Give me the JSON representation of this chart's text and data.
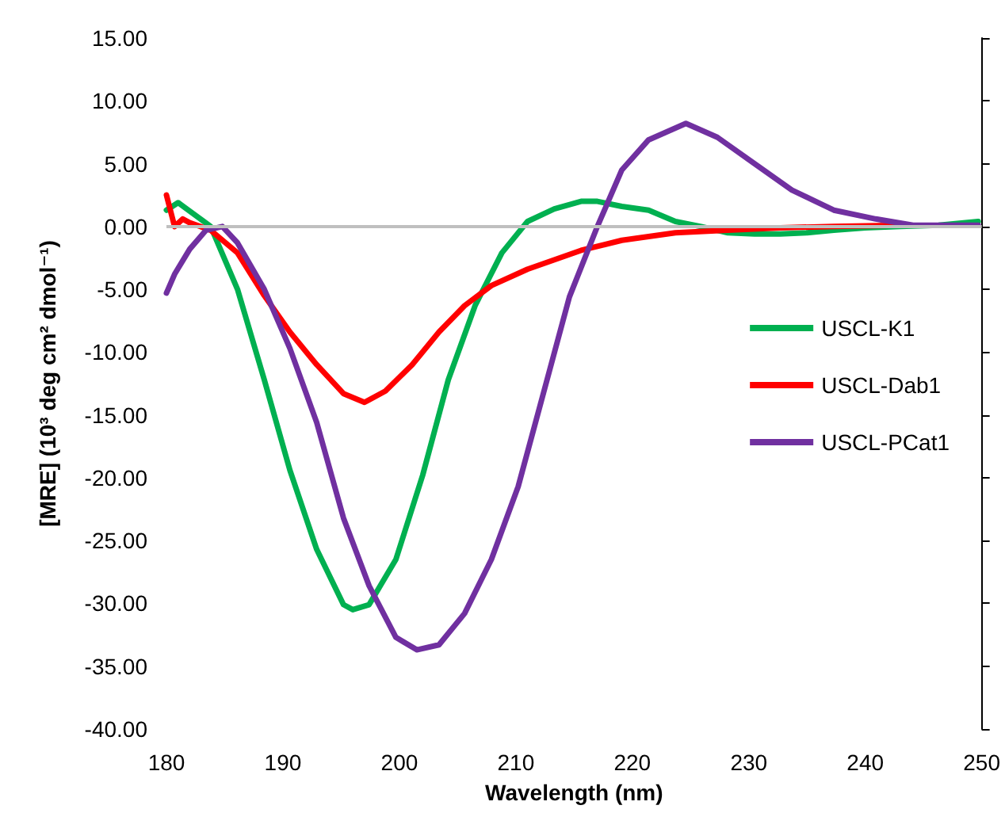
{
  "chart_data": {
    "type": "line",
    "xlabel": "Wavelength (nm)",
    "ylabel": "[MRE] (10³ deg cm² dmol⁻¹)",
    "xlim": [
      180,
      250
    ],
    "xticks": [
      180,
      190,
      200,
      210,
      220,
      230,
      240,
      250
    ],
    "ylim": [
      -40,
      15
    ],
    "yticks": [
      {
        "value": -40,
        "label": "-40.00"
      },
      {
        "value": -35,
        "label": "-35.00"
      },
      {
        "value": -30,
        "label": "-30.00"
      },
      {
        "value": -25,
        "label": "-25.00"
      },
      {
        "value": -20,
        "label": "-20.00"
      },
      {
        "value": -15,
        "label": "-15.00"
      },
      {
        "value": -10,
        "label": "-10.00"
      },
      {
        "value": -5,
        "label": "-5.00"
      },
      {
        "value": 0,
        "label": "0.00"
      },
      {
        "value": 5,
        "label": "5.00"
      },
      {
        "value": 10,
        "label": "10.00"
      },
      {
        "value": 15,
        "label": "15.00"
      }
    ],
    "grid": false,
    "legend": "right",
    "marker": "none",
    "line_style": "solid",
    "ref_lines": [
      {
        "axis": "y",
        "value": 0,
        "color": "#bfbfbf"
      }
    ],
    "series": [
      {
        "name": "USCL-K1",
        "color": "#00b050",
        "x": [
          180,
          181,
          183.8,
          186.1,
          188.4,
          190.6,
          192.9,
          195.2,
          196,
          197.4,
          199.7,
          202,
          204.2,
          206.5,
          208.8,
          211,
          213.3,
          215.6,
          217,
          219.1,
          221.4,
          223.7,
          225.9,
          228.2,
          230.5,
          232.7,
          235,
          237.3,
          240,
          243,
          246.3,
          249.7
        ],
        "values": [
          1.3,
          1.9,
          0,
          -5,
          -12.2,
          -19.4,
          -25.7,
          -30.1,
          -30.5,
          -30.1,
          -26.5,
          -19.8,
          -12.2,
          -6.3,
          -2.1,
          0.4,
          1.4,
          2,
          2,
          1.6,
          1.3,
          0.4,
          0,
          -0.5,
          -0.6,
          -0.6,
          -0.5,
          -0.3,
          -0.1,
          0,
          0.1,
          0.4
        ]
      },
      {
        "name": "USCL-Dab1",
        "color": "#ff0000",
        "x": [
          180,
          180.7,
          181.4,
          182,
          183.8,
          186.1,
          188.4,
          190.6,
          192.9,
          195.2,
          197,
          198.8,
          201.1,
          203.4,
          205.6,
          207.9,
          211,
          215.6,
          219.1,
          223.7,
          228.2,
          232.7,
          237.3,
          243
        ],
        "values": [
          2.5,
          0,
          0.6,
          0.3,
          -0.3,
          -2.1,
          -5.5,
          -8.4,
          -11,
          -13.3,
          -14,
          -13.1,
          -11,
          -8.4,
          -6.3,
          -4.7,
          -3.4,
          -1.9,
          -1.1,
          -0.5,
          -0.3,
          -0.1,
          0,
          0.1
        ]
      },
      {
        "name": "USCL-PCat1",
        "color": "#7030a0",
        "x": [
          180,
          180.7,
          182,
          183.4,
          184.8,
          186.1,
          188.4,
          190.6,
          192.9,
          195.2,
          197.4,
          199.7,
          201.5,
          203.4,
          205.6,
          207.9,
          210.2,
          212.3,
          214.6,
          217,
          219.1,
          221.4,
          224.6,
          227.3,
          230.5,
          233.7,
          237.3,
          240.9,
          244.1,
          249.7
        ],
        "values": [
          -5.3,
          -3.8,
          -1.8,
          -0.3,
          0,
          -1.3,
          -5,
          -9.7,
          -15.6,
          -23.2,
          -28.6,
          -32.7,
          -33.7,
          -33.3,
          -30.8,
          -26.5,
          -20.7,
          -13.5,
          -5.6,
          0,
          4.5,
          6.9,
          8.2,
          7.1,
          5,
          2.9,
          1.3,
          0.6,
          0.1,
          0.1
        ]
      }
    ]
  }
}
